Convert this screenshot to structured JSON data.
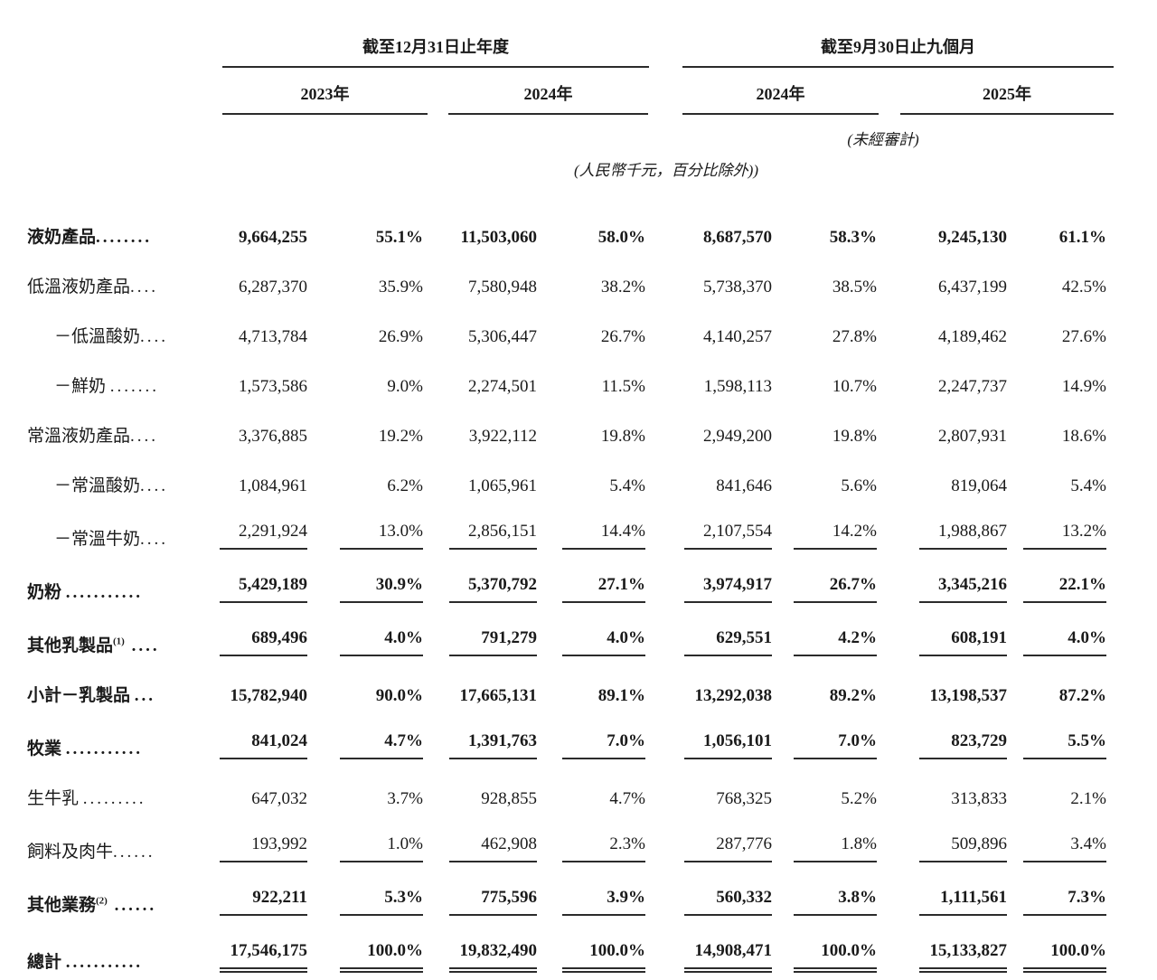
{
  "notes": {
    "unaudited": "(未經審計)",
    "unit": "(人民幣千元，百分比除外))"
  },
  "table": {
    "column_groups": [
      {
        "title": "截至12月31日止年度",
        "years": [
          "2023年",
          "2024年"
        ]
      },
      {
        "title": "截至9月30日止九個月",
        "years": [
          "2024年",
          "2025年"
        ]
      }
    ],
    "rows": [
      {
        "label": "液奶產品",
        "sup": "",
        "dots": "........",
        "indent": false,
        "bold": true,
        "rule": "none",
        "values": [
          "9,664,255",
          "55.1%",
          "11,503,060",
          "58.0%",
          "8,687,570",
          "58.3%",
          "9,245,130",
          "61.1%"
        ]
      },
      {
        "label": "低溫液奶產品",
        "sup": "",
        "dots": "....",
        "indent": false,
        "bold": false,
        "rule": "none",
        "values": [
          "6,287,370",
          "35.9%",
          "7,580,948",
          "38.2%",
          "5,738,370",
          "38.5%",
          "6,437,199",
          "42.5%"
        ]
      },
      {
        "label": "－低溫酸奶",
        "sup": "",
        "dots": "....",
        "indent": true,
        "bold": false,
        "rule": "none",
        "values": [
          "4,713,784",
          "26.9%",
          "5,306,447",
          "26.7%",
          "4,140,257",
          "27.8%",
          "4,189,462",
          "27.6%"
        ]
      },
      {
        "label": "－鮮奶 ",
        "sup": "",
        "dots": ".......",
        "indent": true,
        "bold": false,
        "rule": "none",
        "values": [
          "1,573,586",
          "9.0%",
          "2,274,501",
          "11.5%",
          "1,598,113",
          "10.7%",
          "2,247,737",
          "14.9%"
        ]
      },
      {
        "label": "常溫液奶產品",
        "sup": "",
        "dots": "....",
        "indent": false,
        "bold": false,
        "rule": "none",
        "values": [
          "3,376,885",
          "19.2%",
          "3,922,112",
          "19.8%",
          "2,949,200",
          "19.8%",
          "2,807,931",
          "18.6%"
        ]
      },
      {
        "label": "－常溫酸奶",
        "sup": "",
        "dots": "....",
        "indent": true,
        "bold": false,
        "rule": "none",
        "values": [
          "1,084,961",
          "6.2%",
          "1,065,961",
          "5.4%",
          "841,646",
          "5.6%",
          "819,064",
          "5.4%"
        ]
      },
      {
        "label": "－常溫牛奶",
        "sup": "",
        "dots": "....",
        "indent": true,
        "bold": false,
        "rule": "single",
        "values": [
          "2,291,924",
          "13.0%",
          "2,856,151",
          "14.4%",
          "2,107,554",
          "14.2%",
          "1,988,867",
          "13.2%"
        ]
      },
      {
        "label": "奶粉 ",
        "sup": "",
        "dots": "...........",
        "indent": false,
        "bold": true,
        "rule": "single",
        "values": [
          "5,429,189",
          "30.9%",
          "5,370,792",
          "27.1%",
          "3,974,917",
          "26.7%",
          "3,345,216",
          "22.1%"
        ]
      },
      {
        "label": "其他乳製品",
        "sup": "(1)",
        "dots": " ....",
        "indent": false,
        "bold": true,
        "rule": "single",
        "values": [
          "689,496",
          "4.0%",
          "791,279",
          "4.0%",
          "629,551",
          "4.2%",
          "608,191",
          "4.0%"
        ]
      },
      {
        "label": "小計－乳製品 ",
        "sup": "",
        "dots": "...",
        "indent": false,
        "bold": true,
        "rule": "none",
        "values": [
          "15,782,940",
          "90.0%",
          "17,665,131",
          "89.1%",
          "13,292,038",
          "89.2%",
          "13,198,537",
          "87.2%"
        ]
      },
      {
        "label": "牧業 ",
        "sup": "",
        "dots": "...........",
        "indent": false,
        "bold": true,
        "rule": "single",
        "values": [
          "841,024",
          "4.7%",
          "1,391,763",
          "7.0%",
          "1,056,101",
          "7.0%",
          "823,729",
          "5.5%"
        ]
      },
      {
        "label": "生牛乳 ",
        "sup": "",
        "dots": ".........",
        "indent": false,
        "bold": false,
        "rule": "none",
        "values": [
          "647,032",
          "3.7%",
          "928,855",
          "4.7%",
          "768,325",
          "5.2%",
          "313,833",
          "2.1%"
        ]
      },
      {
        "label": "飼料及肉牛",
        "sup": "",
        "dots": "......",
        "indent": false,
        "bold": false,
        "rule": "single",
        "values": [
          "193,992",
          "1.0%",
          "462,908",
          "2.3%",
          "287,776",
          "1.8%",
          "509,896",
          "3.4%"
        ]
      },
      {
        "label": "其他業務",
        "sup": "(2)",
        "dots": " ......",
        "indent": false,
        "bold": true,
        "rule": "single",
        "values": [
          "922,211",
          "5.3%",
          "775,596",
          "3.9%",
          "560,332",
          "3.8%",
          "1,111,561",
          "7.3%"
        ]
      },
      {
        "label": "總計 ",
        "sup": "",
        "dots": "...........",
        "indent": false,
        "bold": true,
        "rule": "double",
        "values": [
          "17,546,175",
          "100.0%",
          "19,832,490",
          "100.0%",
          "14,908,471",
          "100.0%",
          "15,133,827",
          "100.0%"
        ]
      }
    ]
  }
}
